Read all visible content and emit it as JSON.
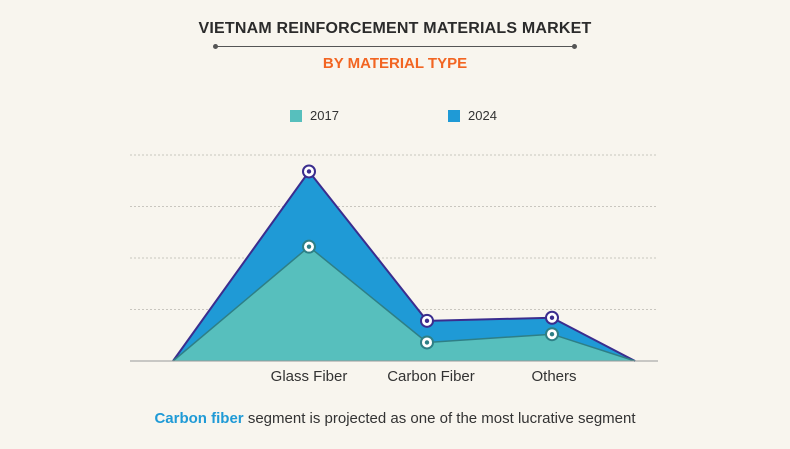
{
  "title": "VIETNAM REINFORCEMENT MATERIALS MARKET",
  "subtitle": "BY MATERIAL TYPE",
  "colors": {
    "series_2017": "#57bfbd",
    "series_2024": "#1f9ad6",
    "outline_2024": "#3b2d8e",
    "outline_2017": "#2e7f86",
    "subtitle": "#f26522",
    "footer_highlight": "#1f9ad6"
  },
  "footer": {
    "highlight": "Carbon fiber",
    "rest": " segment is projected as one of the most lucrative segment"
  },
  "chart_data": {
    "type": "area",
    "categories": [
      "Glass Fiber",
      "Carbon Fiber",
      "Others"
    ],
    "series": [
      {
        "name": "2017",
        "values": [
          111,
          18,
          26
        ]
      },
      {
        "name": "2024",
        "values": [
          184,
          39,
          42
        ]
      }
    ],
    "ylim": [
      0,
      200
    ],
    "grid": true,
    "legend_position": "top-center",
    "area_starts_and_ends_at_baseline": true
  }
}
